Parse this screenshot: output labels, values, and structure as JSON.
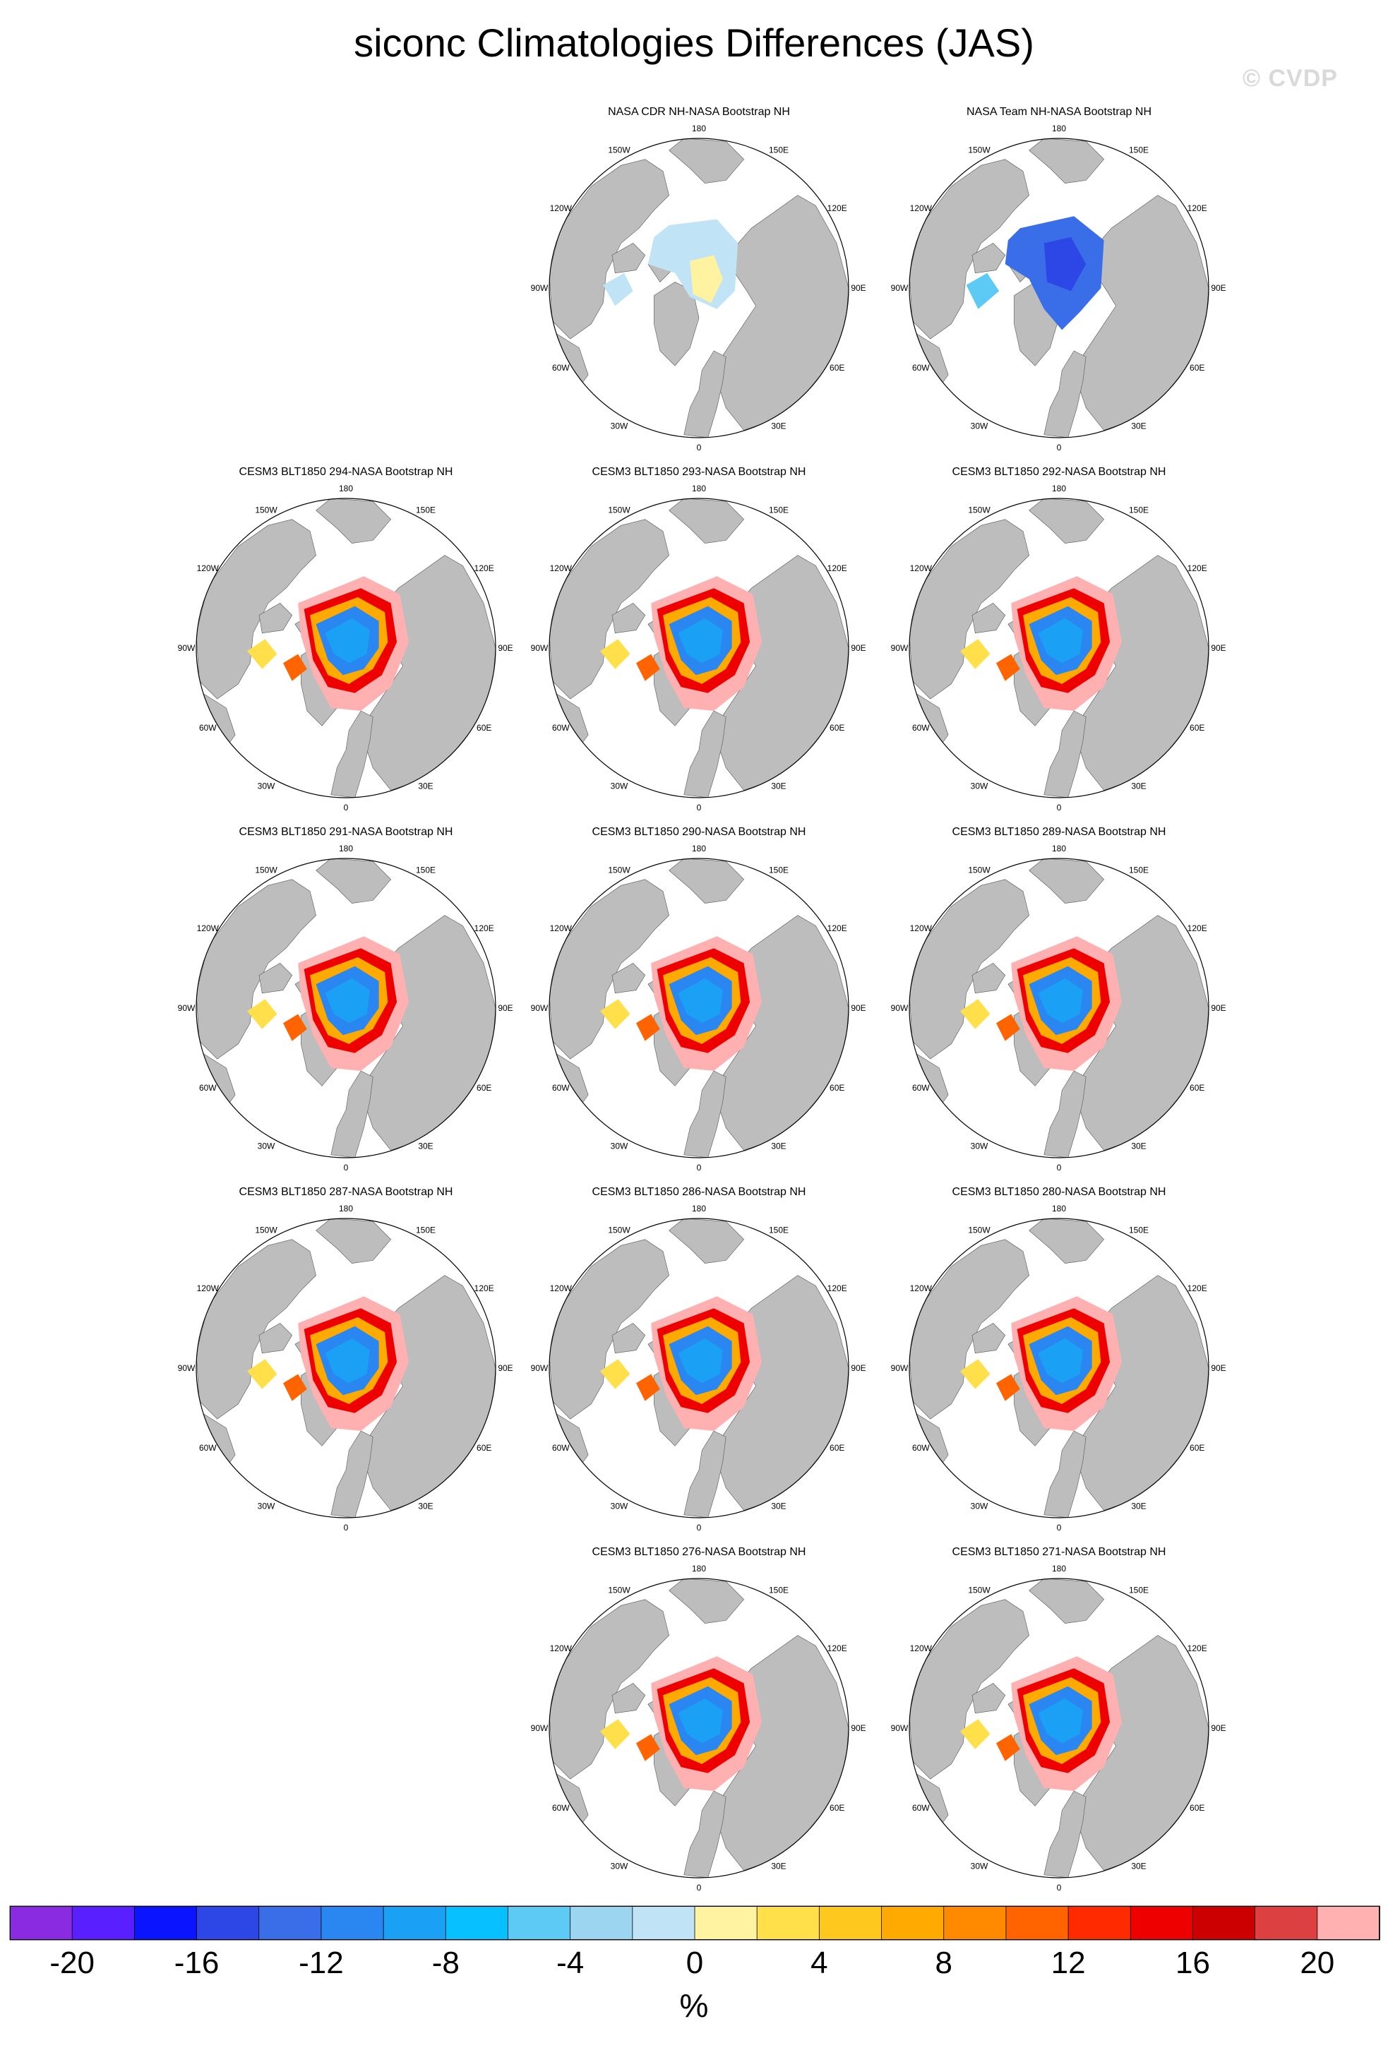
{
  "title": "siconc Climatologies Differences (JAS)",
  "watermark": "© CVDP",
  "panels": [
    {
      "title": "NASA CDR NH-NASA Bootstrap NH",
      "style": "cdr"
    },
    {
      "title": "NASA Team NH-NASA Bootstrap NH",
      "style": "team"
    },
    {
      "title": "CESM3 BLT1850 294-NASA Bootstrap NH",
      "style": "model"
    },
    {
      "title": "CESM3 BLT1850 293-NASA Bootstrap NH",
      "style": "model"
    },
    {
      "title": "CESM3 BLT1850 292-NASA Bootstrap NH",
      "style": "model"
    },
    {
      "title": "CESM3 BLT1850 291-NASA Bootstrap NH",
      "style": "model"
    },
    {
      "title": "CESM3 BLT1850 290-NASA Bootstrap NH",
      "style": "model"
    },
    {
      "title": "CESM3 BLT1850 289-NASA Bootstrap NH",
      "style": "model"
    },
    {
      "title": "CESM3 BLT1850 287-NASA Bootstrap NH",
      "style": "model"
    },
    {
      "title": "CESM3 BLT1850 286-NASA Bootstrap NH",
      "style": "model"
    },
    {
      "title": "CESM3 BLT1850 280-NASA Bootstrap NH",
      "style": "model"
    },
    {
      "title": "CESM3 BLT1850 276-NASA Bootstrap NH",
      "style": "model"
    },
    {
      "title": "CESM3 BLT1850 271-NASA Bootstrap NH",
      "style": "model"
    }
  ],
  "map_labels": {
    "lon_180": "180",
    "lon_150w": "150W",
    "lon_150e": "150E",
    "lon_120w": "120W",
    "lon_120e": "120E",
    "lon_90w": "90W",
    "lon_90e": "90E",
    "lon_60w": "60W",
    "lon_60e": "60E",
    "lon_30w": "30W",
    "lon_30e": "30E",
    "lon_0": "0"
  },
  "colors": {
    "land": "#bdbdbd",
    "ocean": "#ffffff"
  },
  "colorbar": {
    "colors": [
      "#8a2be2",
      "#5a1fff",
      "#0a14ff",
      "#2c47e6",
      "#3a6ee8",
      "#2a86f0",
      "#1aa0f5",
      "#06c0ff",
      "#5ccaf5",
      "#9cd5f0",
      "#c0e3f5",
      "#fff2a0",
      "#ffe04a",
      "#ffc81e",
      "#ffaa00",
      "#ff8a00",
      "#ff6400",
      "#ff2a00",
      "#ee0000",
      "#cc0000",
      "#dd4040",
      "#ffb0b0"
    ],
    "tick_labels": [
      "-20",
      "-16",
      "-12",
      "-8",
      "-4",
      "0",
      "4",
      "8",
      "12",
      "16",
      "20"
    ],
    "units": "%"
  }
}
